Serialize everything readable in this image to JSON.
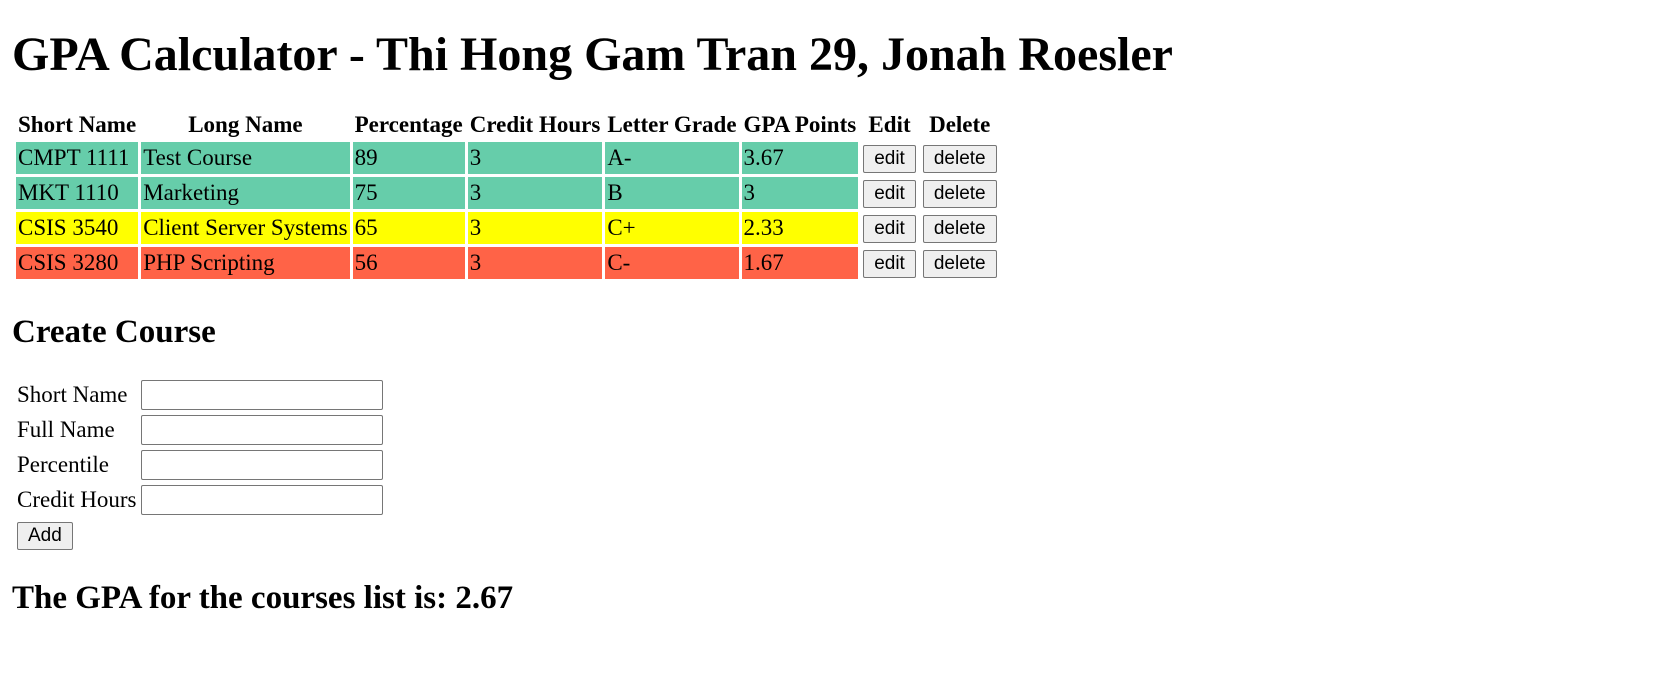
{
  "page": {
    "title": "GPA Calculator - Thi Hong Gam Tran 29, Jonah Roesler"
  },
  "table": {
    "headers": [
      "Short Name",
      "Long Name",
      "Percentage",
      "Credit Hours",
      "Letter Grade",
      "GPA Points",
      "Edit",
      "Delete"
    ],
    "rows": [
      {
        "short": "CMPT 1111",
        "long": "Test Course",
        "percentage": "89",
        "credit": "3",
        "letter": "A-",
        "gpa": "3.67",
        "edit_label": "edit",
        "delete_label": "delete",
        "color": "#66cdaa"
      },
      {
        "short": "MKT 1110",
        "long": "Marketing",
        "percentage": "75",
        "credit": "3",
        "letter": "B",
        "gpa": "3",
        "edit_label": "edit",
        "delete_label": "delete",
        "color": "#66cdaa"
      },
      {
        "short": "CSIS 3540",
        "long": "Client Server Systems",
        "percentage": "65",
        "credit": "3",
        "letter": "C+",
        "gpa": "2.33",
        "edit_label": "edit",
        "delete_label": "delete",
        "color": "#ffff00"
      },
      {
        "short": "CSIS 3280",
        "long": "PHP Scripting",
        "percentage": "56",
        "credit": "3",
        "letter": "C-",
        "gpa": "1.67",
        "edit_label": "edit",
        "delete_label": "delete",
        "color": "#ff6347"
      }
    ]
  },
  "create": {
    "title": "Create Course",
    "short_label": "Short Name",
    "full_label": "Full Name",
    "percentile_label": "Percentile",
    "credit_label": "Credit Hours",
    "short_value": "",
    "full_value": "",
    "percentile_value": "",
    "credit_value": "",
    "add_label": "Add"
  },
  "summary": {
    "text": "The GPA for the courses list is: 2.67"
  }
}
